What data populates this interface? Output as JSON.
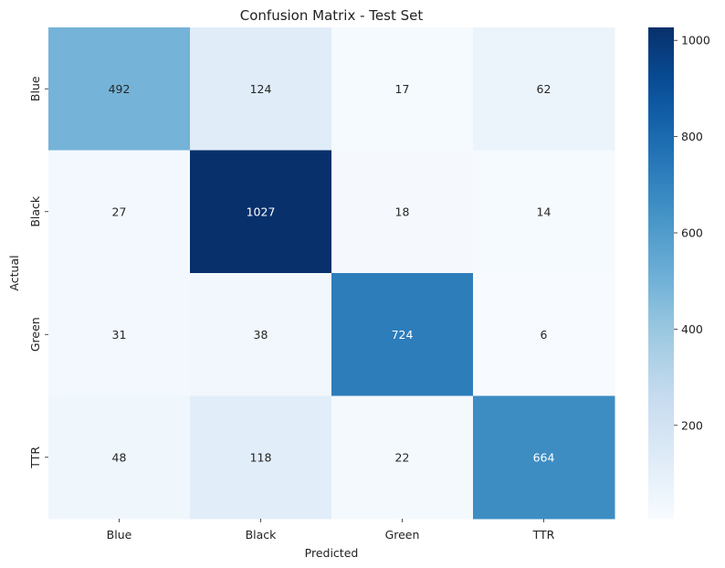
{
  "chart_data": {
    "type": "heatmap",
    "title": "Confusion Matrix - Test Set",
    "xlabel": "Predicted",
    "ylabel": "Actual",
    "x_categories": [
      "Blue",
      "Black",
      "Green",
      "TTR"
    ],
    "y_categories": [
      "Blue",
      "Black",
      "Green",
      "TTR"
    ],
    "values": [
      [
        492,
        124,
        17,
        62
      ],
      [
        27,
        1027,
        18,
        14
      ],
      [
        31,
        38,
        724,
        6
      ],
      [
        48,
        118,
        22,
        664
      ]
    ],
    "colormap": "Blues",
    "colorbar": {
      "range": [
        6,
        1027
      ],
      "ticks": [
        200,
        400,
        600,
        800,
        1000
      ]
    },
    "grid": false
  }
}
